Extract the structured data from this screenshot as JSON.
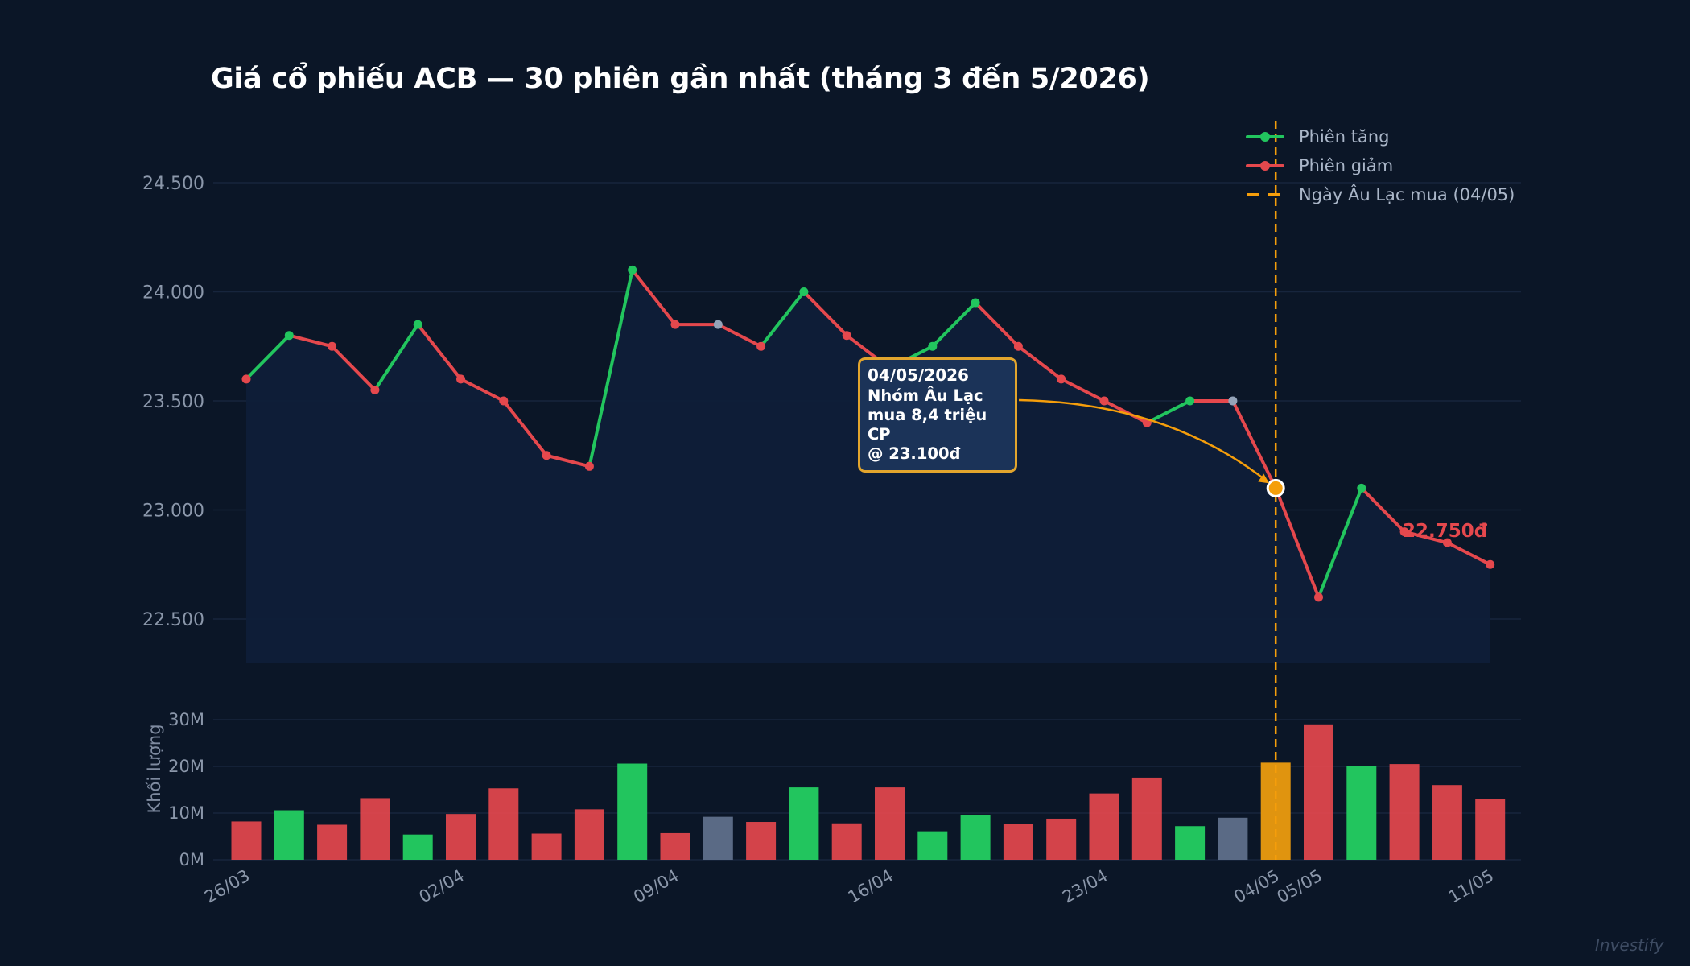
{
  "title": "Giá cổ phiếu ACB — 30 phiên gần nhất (tháng 3 đến 5/2026)",
  "watermark": "Investify",
  "legend": {
    "up": "Phiên tăng",
    "down": "Phiên giảm",
    "event": "Ngày Âu Lạc mua (04/05)"
  },
  "callout": {
    "date": "04/05/2026",
    "lines": [
      "Nhóm Âu Lạc",
      "mua 8,4 triệu CP",
      "@ 23.100đ"
    ]
  },
  "last_price_label": "22.750đ",
  "colors": {
    "background": "#0b1627",
    "up": "#22c55e",
    "down": "#e5484d",
    "flat": "#94a3b8",
    "event": "#f59e0b",
    "grid": "#17253d",
    "area": "#0f1e38"
  },
  "chart_data": [
    {
      "type": "line",
      "title": "Giá cổ phiếu ACB — 30 phiên gần nhất (tháng 3 đến 5/2026)",
      "ylabel": "",
      "ylim": [
        22300,
        24800
      ],
      "yticks": [
        22500,
        23000,
        23500,
        24000,
        24500
      ],
      "ytick_labels": [
        "22.500",
        "23.000",
        "23.500",
        "24.000",
        "24.500"
      ],
      "x_tick_labels": [
        {
          "index": 0,
          "label": "26/03"
        },
        {
          "index": 5,
          "label": "02/04"
        },
        {
          "index": 10,
          "label": "09/04"
        },
        {
          "index": 15,
          "label": "16/04"
        },
        {
          "index": 20,
          "label": "23/04"
        },
        {
          "index": 24,
          "label": "04/05"
        },
        {
          "index": 25,
          "label": "05/05"
        },
        {
          "index": 29,
          "label": "11/05"
        }
      ],
      "values": [
        23600,
        23800,
        23750,
        23550,
        23850,
        23600,
        23500,
        23250,
        23200,
        24100,
        23850,
        23850,
        23750,
        24000,
        23800,
        23650,
        23750,
        23950,
        23750,
        23600,
        23500,
        23400,
        23500,
        23500,
        23100,
        22600,
        23100,
        22900,
        22850,
        22750
      ],
      "direction": [
        "down",
        "up",
        "down",
        "down",
        "up",
        "down",
        "down",
        "down",
        "down",
        "up",
        "down",
        "flat",
        "down",
        "up",
        "down",
        "down",
        "up",
        "up",
        "down",
        "down",
        "down",
        "down",
        "up",
        "flat",
        "down",
        "down",
        "up",
        "down",
        "down",
        "down"
      ],
      "event_index": 24,
      "event_label": "Ngày Âu Lạc mua (04/05)",
      "grid": true,
      "legend_position": "top-right"
    },
    {
      "type": "bar",
      "ylabel": "Khối lượng",
      "ylim": [
        0,
        32
      ],
      "yticks": [
        0,
        10,
        20,
        30
      ],
      "ytick_labels": [
        "0M",
        "10M",
        "20M",
        "30M"
      ],
      "units": "M",
      "values": [
        8.2,
        10.6,
        7.5,
        13.2,
        5.4,
        9.8,
        15.3,
        5.6,
        10.8,
        20.6,
        5.7,
        9.2,
        8.1,
        15.5,
        7.8,
        15.5,
        6.1,
        9.5,
        7.7,
        8.8,
        14.2,
        17.6,
        7.2,
        9.0,
        20.8,
        29.0,
        20.0,
        20.5,
        16.0,
        13.0
      ],
      "direction": [
        "down",
        "up",
        "down",
        "down",
        "up",
        "down",
        "down",
        "down",
        "down",
        "up",
        "down",
        "flat",
        "down",
        "up",
        "down",
        "down",
        "up",
        "up",
        "down",
        "down",
        "down",
        "down",
        "up",
        "flat",
        "event",
        "down",
        "up",
        "down",
        "down",
        "down"
      ],
      "grid": true
    }
  ]
}
